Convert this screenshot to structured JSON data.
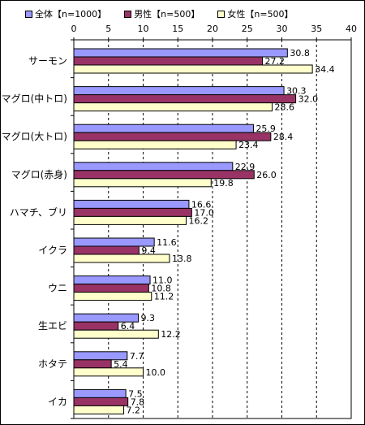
{
  "chart_data": {
    "type": "bar",
    "orientation": "horizontal",
    "categories": [
      "サーモン",
      "マグロ(中トロ)",
      "マグロ(大トロ)",
      "マグロ(赤身)",
      "ハマチ、ブリ",
      "イクラ",
      "ウニ",
      "生エビ",
      "ホタテ",
      "イカ"
    ],
    "series": [
      {
        "name": "全体【n=1000】",
        "color": "#9999FF",
        "values": [
          30.8,
          30.3,
          25.9,
          22.9,
          16.6,
          11.6,
          11.0,
          9.3,
          7.7,
          7.5
        ]
      },
      {
        "name": "男性【n=500】",
        "color": "#993366",
        "values": [
          27.2,
          32.0,
          28.4,
          26.0,
          17.0,
          9.4,
          10.8,
          6.4,
          5.4,
          7.8
        ]
      },
      {
        "name": "女性【n=500】",
        "color": "#FFFFCC",
        "values": [
          34.4,
          28.6,
          23.4,
          19.8,
          16.2,
          13.8,
          11.2,
          12.2,
          10.0,
          7.2
        ]
      }
    ],
    "xlim": [
      0,
      40
    ],
    "xticks": [
      0,
      5,
      10,
      15,
      20,
      25,
      30,
      35,
      40
    ],
    "xaxis_position": "top",
    "grid": "vertical dashed",
    "legend": "top",
    "data_labels": true
  }
}
